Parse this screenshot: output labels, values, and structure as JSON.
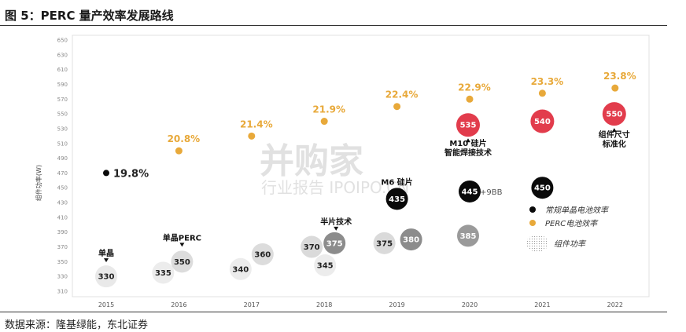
{
  "figure": {
    "title": "图 5：PERC 量产效率发展路线",
    "source": "数据来源：隆基绿能，东北证券"
  },
  "chart_data": {
    "type": "scatter",
    "ylabel": "组件功率(W)",
    "ylim": [
      310,
      650
    ],
    "y_ticks": [
      310,
      330,
      350,
      370,
      390,
      410,
      430,
      450,
      470,
      490,
      510,
      530,
      550,
      570,
      590,
      610,
      630,
      650
    ],
    "categories": [
      "2015",
      "2016",
      "2017",
      "2018",
      "2019",
      "2020",
      "2021",
      "2022"
    ],
    "series": [
      {
        "name": "常规单晶电池效率",
        "color": "#0a0a0a",
        "points": [
          {
            "x": "2015",
            "y": 470,
            "label": "19.8%"
          },
          {
            "x": "2019",
            "y": 435,
            "label": "435"
          },
          {
            "x": "2020",
            "y": 445,
            "label": "445"
          },
          {
            "x": "2021",
            "y": 450,
            "label": "450"
          }
        ]
      },
      {
        "name": "PERC电池效率",
        "color": "#e8a93a",
        "points": [
          {
            "x": "2016",
            "y": 500,
            "label": "20.8%"
          },
          {
            "x": "2017",
            "y": 520,
            "label": "21.4%"
          },
          {
            "x": "2018",
            "y": 540,
            "label": "21.9%"
          },
          {
            "x": "2019",
            "y": 560,
            "label": "22.4%"
          },
          {
            "x": "2020",
            "y": 570,
            "label": "22.9%"
          },
          {
            "x": "2021",
            "y": 578,
            "label": "23.3%"
          },
          {
            "x": "2022",
            "y": 585,
            "label": "23.8%"
          }
        ]
      },
      {
        "name": "组件功率",
        "points": [
          {
            "x": "2015",
            "y": 330,
            "label": "330",
            "fill": "#e9e9e9"
          },
          {
            "x": "2016",
            "y": 335,
            "label": "335",
            "fill": "#ececec"
          },
          {
            "x": "2016",
            "y": 350,
            "label": "350",
            "fill": "#dcdcdc"
          },
          {
            "x": "2017",
            "y": 340,
            "label": "340",
            "fill": "#ececec"
          },
          {
            "x": "2017",
            "y": 360,
            "label": "360",
            "fill": "#dcdcdc"
          },
          {
            "x": "2018",
            "y": 370,
            "label": "370",
            "fill": "#dadada"
          },
          {
            "x": "2018",
            "y": 375,
            "label": "375",
            "fill": "#8c8c8c"
          },
          {
            "x": "2018",
            "y": 345,
            "label": "345",
            "fill": "#ececec"
          },
          {
            "x": "2019",
            "y": 375,
            "label": "375",
            "fill": "#dadada"
          },
          {
            "x": "2019",
            "y": 380,
            "label": "380",
            "fill": "#8c8c8c"
          },
          {
            "x": "2020",
            "y": 385,
            "label": "385",
            "fill": "#9a9a9a"
          },
          {
            "x": "2020",
            "y": 535,
            "label": "535",
            "fill": "#e23c4c"
          },
          {
            "x": "2021",
            "y": 540,
            "label": "540",
            "fill": "#e23c4c"
          },
          {
            "x": "2022",
            "y": 550,
            "label": "550",
            "fill": "#e23c4c"
          }
        ]
      }
    ],
    "annotations": [
      {
        "text": "单晶",
        "x": "2015"
      },
      {
        "text": "单晶PERC",
        "x": "2016"
      },
      {
        "text": "半片技术",
        "x": "2018"
      },
      {
        "text": "M6 硅片",
        "x": "2019"
      },
      {
        "text": "M10 硅片",
        "x": "2020"
      },
      {
        "text": "智能焊接技术",
        "x": "2020"
      },
      {
        "text": "+9BB",
        "x": "2020"
      },
      {
        "text": "组件尺寸",
        "x": "2022"
      },
      {
        "text": "标准化",
        "x": "2022"
      }
    ],
    "legend": [
      {
        "label": "常规单晶电池效率"
      },
      {
        "label": "PERC电池效率"
      },
      {
        "label": "组件功率"
      }
    ],
    "legend_position": "bottom-right",
    "watermark": [
      "并购家",
      "行业报告 IPOIPO.CN"
    ]
  }
}
